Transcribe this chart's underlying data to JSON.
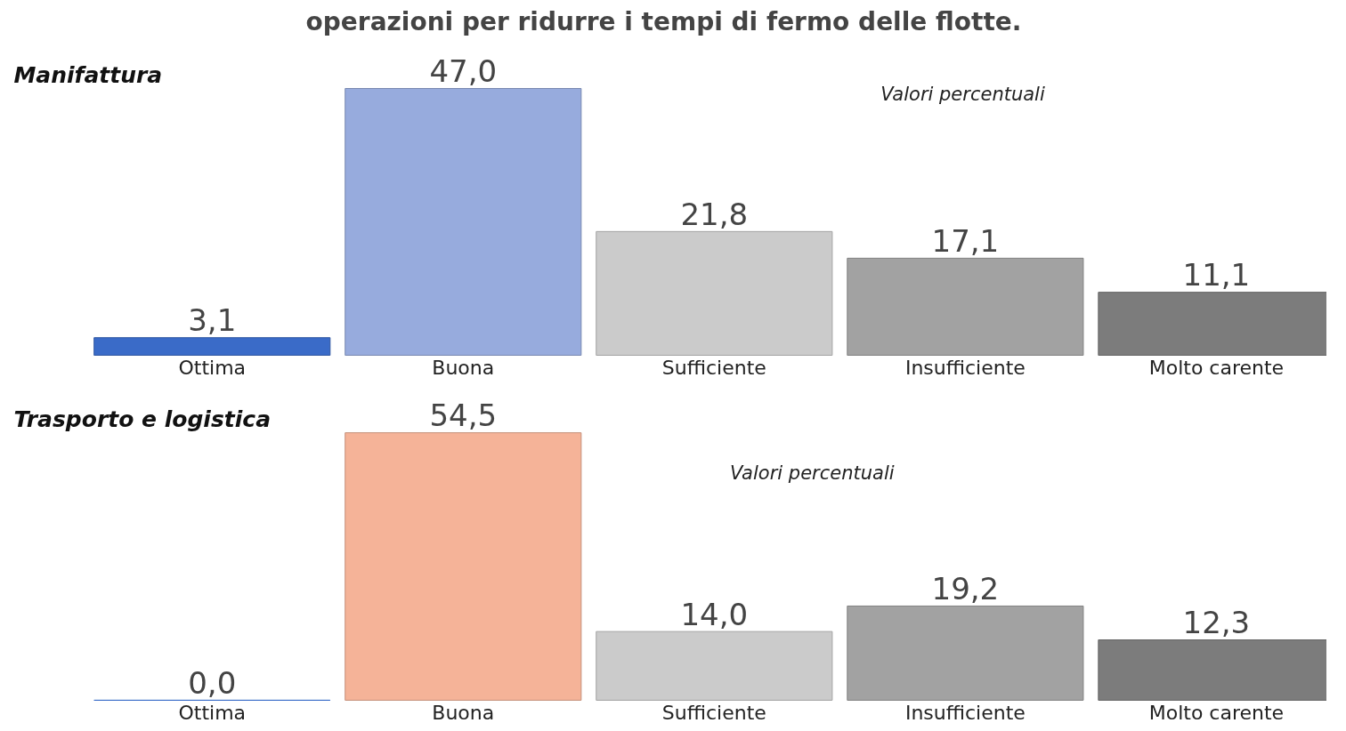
{
  "chart_data": [
    {
      "type": "bar",
      "title": "operazioni per ridurre i tempi di fermo delle flotte.",
      "subtitle": "Manifattura",
      "annotations": [
        "Valori percentuali"
      ],
      "categories": [
        "Ottima",
        "Buona",
        "Sufficiente",
        "Insufficiente",
        "Molto carente"
      ],
      "values": [
        3.1,
        47.0,
        21.8,
        17.1,
        11.1
      ],
      "colors": [
        "#3a6bc8",
        "#97abdd",
        "#cbcbcb",
        "#a2a2a2",
        "#7c7c7c"
      ],
      "value_labels": [
        "3,1",
        "47,0",
        "21,8",
        "17,1",
        "11,1"
      ],
      "grid": false
    },
    {
      "type": "bar",
      "subtitle": "Trasporto e logistica",
      "annotations": [
        "Valori percentuali"
      ],
      "categories": [
        "Ottima",
        "Buona",
        "Sufficiente",
        "Insufficiente",
        "Molto carente"
      ],
      "values": [
        0.0,
        54.5,
        14.0,
        19.2,
        12.3
      ],
      "colors": [
        "#3a6bc8",
        "#f5b398",
        "#cbcbcb",
        "#a2a2a2",
        "#7c7c7c"
      ],
      "value_labels": [
        "0,0",
        "54,5",
        "14,0",
        "19,2",
        "12,3"
      ],
      "grid": false
    }
  ]
}
